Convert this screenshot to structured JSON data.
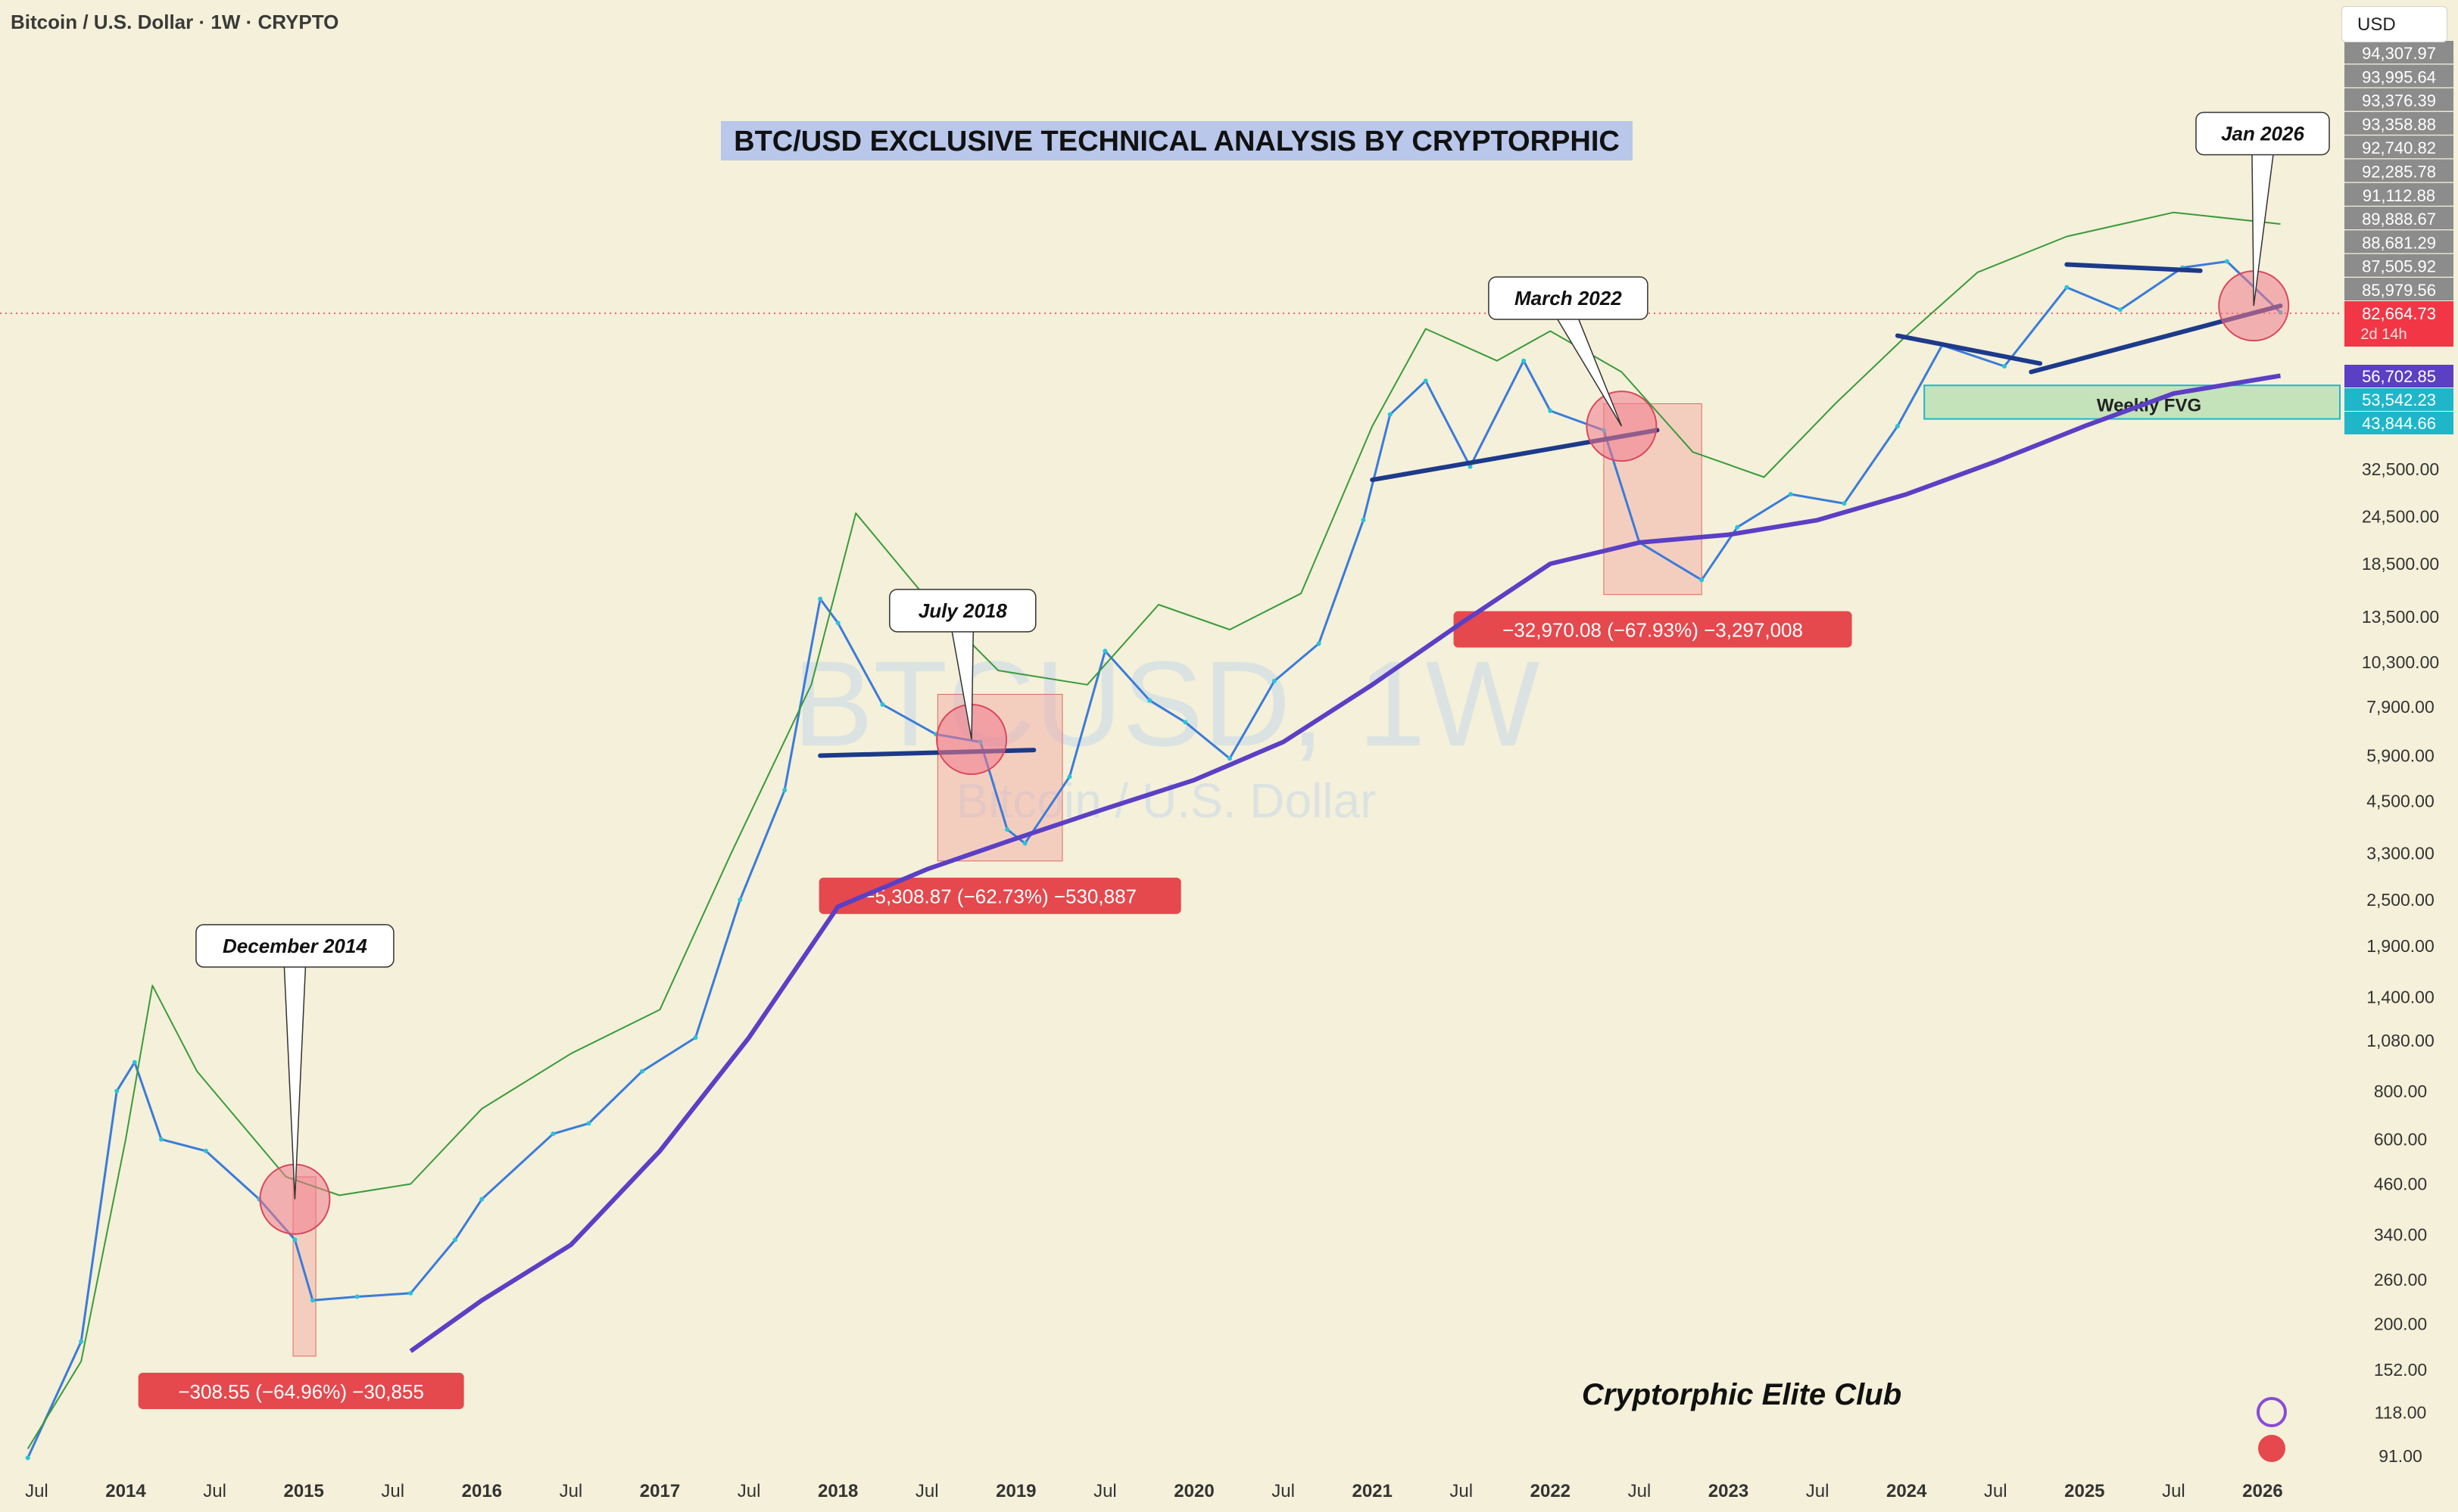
{
  "header": {
    "symbol_title": "Bitcoin / U.S. Dollar · 1W · CRYPTO",
    "currency": "USD"
  },
  "watermark": {
    "ticker": "BTCUSD, 1W",
    "name": "Bitcoin / U.S. Dollar"
  },
  "chart_data": {
    "type": "line",
    "title": "BTC/USD EXCLUSIVE TECHNICAL ANALYSIS BY CRYPTORPHIC",
    "signature": "Cryptorphic Elite Club",
    "scale": "log",
    "grid": false,
    "x_ticks": [
      "Jul",
      "2014",
      "Jul",
      "2015",
      "Jul",
      "2016",
      "Jul",
      "2017",
      "Jul",
      "2018",
      "Jul",
      "2019",
      "Jul",
      "2020",
      "Jul",
      "2021",
      "Jul",
      "2022",
      "Jul",
      "2023",
      "Jul",
      "2024",
      "Jul",
      "2025",
      "Jul",
      "2026"
    ],
    "y_ticks": [
      "32,500.00",
      "24,500.00",
      "18,500.00",
      "13,500.00",
      "10,300.00",
      "7,900.00",
      "5,900.00",
      "4,500.00",
      "3,300.00",
      "2,500.00",
      "1,900.00",
      "1,400.00",
      "1,080.00",
      "800.00",
      "600.00",
      "460.00",
      "340.00",
      "260.00",
      "200.00",
      "152.00",
      "118.00",
      "91.00"
    ],
    "y_ticks_values": [
      32500,
      24500,
      18500,
      13500,
      10300,
      7900,
      5900,
      4500,
      3300,
      2500,
      1900,
      1400,
      1080,
      800,
      600,
      460,
      340,
      260,
      200,
      152,
      118,
      91
    ],
    "price_stack": [
      "94,307.97",
      "93,995.64",
      "93,376.39",
      "93,358.88",
      "92,740.82",
      "92,285.78",
      "91,112.88",
      "89,888.67",
      "88,681.29",
      "87,505.92",
      "85,979.56"
    ],
    "current_price": {
      "label": "82,664.73",
      "countdown": "2d 14h",
      "color": "#f23645"
    },
    "level_labels": [
      {
        "label": "56,702.85",
        "color": "#5b3fc4"
      },
      {
        "label": "53,542.23",
        "color": "#1fb6c9"
      },
      {
        "label": "43,844.66",
        "color": "#1fb6c9"
      }
    ],
    "fvg_label": "Weekly FVG",
    "series": [
      {
        "name": "",
        "color": "#3b7bd9",
        "points": [
          [
            2013.45,
            90
          ],
          [
            2013.75,
            180
          ],
          [
            2013.95,
            800
          ],
          [
            2014.05,
            950
          ],
          [
            2014.2,
            600
          ],
          [
            2014.45,
            560
          ],
          [
            2014.75,
            420
          ],
          [
            2014.95,
            330
          ],
          [
            2015.05,
            230
          ],
          [
            2015.3,
            235
          ],
          [
            2015.6,
            240
          ],
          [
            2015.85,
            330
          ],
          [
            2016.0,
            420
          ],
          [
            2016.4,
            620
          ],
          [
            2016.6,
            660
          ],
          [
            2016.9,
            900
          ],
          [
            2017.2,
            1100
          ],
          [
            2017.45,
            2500
          ],
          [
            2017.7,
            4800
          ],
          [
            2017.9,
            15000
          ],
          [
            2018.0,
            13000
          ],
          [
            2018.25,
            8000
          ],
          [
            2018.55,
            6700
          ],
          [
            2018.8,
            6400
          ],
          [
            2018.95,
            3800
          ],
          [
            2019.05,
            3500
          ],
          [
            2019.3,
            5200
          ],
          [
            2019.5,
            11000
          ],
          [
            2019.75,
            8200
          ],
          [
            2019.95,
            7200
          ],
          [
            2020.2,
            5800
          ],
          [
            2020.45,
            9200
          ],
          [
            2020.7,
            11500
          ],
          [
            2020.95,
            24000
          ],
          [
            2021.1,
            45000
          ],
          [
            2021.3,
            55000
          ],
          [
            2021.55,
            33000
          ],
          [
            2021.85,
            62000
          ],
          [
            2022.0,
            46000
          ],
          [
            2022.3,
            41000
          ],
          [
            2022.5,
            21000
          ],
          [
            2022.85,
            16800
          ],
          [
            2023.05,
            23000
          ],
          [
            2023.35,
            28000
          ],
          [
            2023.65,
            26500
          ],
          [
            2023.95,
            42000
          ],
          [
            2024.2,
            68000
          ],
          [
            2024.55,
            60000
          ],
          [
            2024.9,
            96000
          ],
          [
            2025.2,
            84000
          ],
          [
            2025.55,
            108000
          ],
          [
            2025.8,
            112000
          ],
          [
            2026.1,
            82664
          ]
        ]
      },
      {
        "name": "",
        "color": "#5b3fc4",
        "points": [
          [
            2015.6,
            170
          ],
          [
            2016.0,
            230
          ],
          [
            2016.5,
            320
          ],
          [
            2017.0,
            560
          ],
          [
            2017.5,
            1100
          ],
          [
            2018.0,
            2400
          ],
          [
            2018.5,
            3000
          ],
          [
            2019.0,
            3600
          ],
          [
            2019.5,
            4300
          ],
          [
            2020.0,
            5100
          ],
          [
            2020.5,
            6400
          ],
          [
            2021.0,
            9000
          ],
          [
            2021.5,
            13000
          ],
          [
            2022.0,
            18500
          ],
          [
            2022.5,
            21000
          ],
          [
            2023.0,
            22000
          ],
          [
            2023.5,
            24000
          ],
          [
            2024.0,
            28000
          ],
          [
            2024.5,
            34000
          ],
          [
            2025.0,
            42000
          ],
          [
            2025.5,
            51000
          ],
          [
            2026.1,
            56702
          ]
        ]
      },
      {
        "name": "",
        "color": "#3a9b3a",
        "points": [
          [
            2013.45,
            95
          ],
          [
            2013.75,
            160
          ],
          [
            2014.0,
            600
          ],
          [
            2014.15,
            1500
          ],
          [
            2014.4,
            900
          ],
          [
            2014.9,
            480
          ],
          [
            2015.2,
            430
          ],
          [
            2015.6,
            460
          ],
          [
            2016.0,
            720
          ],
          [
            2016.5,
            1000
          ],
          [
            2017.0,
            1300
          ],
          [
            2017.4,
            3300
          ],
          [
            2017.85,
            9000
          ],
          [
            2018.1,
            25000
          ],
          [
            2018.5,
            15000
          ],
          [
            2018.9,
            9800
          ],
          [
            2019.4,
            9000
          ],
          [
            2019.8,
            14500
          ],
          [
            2020.2,
            12500
          ],
          [
            2020.6,
            15500
          ],
          [
            2021.0,
            42000
          ],
          [
            2021.3,
            75000
          ],
          [
            2021.7,
            62000
          ],
          [
            2022.0,
            74000
          ],
          [
            2022.4,
            58000
          ],
          [
            2022.8,
            36000
          ],
          [
            2023.2,
            31000
          ],
          [
            2023.6,
            48000
          ],
          [
            2024.0,
            72000
          ],
          [
            2024.4,
            105000
          ],
          [
            2024.9,
            130000
          ],
          [
            2025.5,
            150000
          ],
          [
            2026.1,
            140000
          ]
        ]
      }
    ],
    "drawdowns": [
      {
        "label": "−308.55 (−64.96%) −30,855",
        "x0": 2014.94,
        "x1": 2015.03,
        "y0": 480,
        "y1": 165
      },
      {
        "label": "−5,308.87 (−62.73%) −530,887",
        "x0": 2018.56,
        "x1": 2019.26,
        "y0": 8500,
        "y1": 3150
      },
      {
        "label": "−32,970.08 (−67.93%) −3,297,008",
        "x0": 2022.3,
        "x1": 2022.85,
        "y0": 48000,
        "y1": 15400
      }
    ],
    "annotations": [
      {
        "text": "December 2014",
        "cx": 2014.95,
        "cy": 420,
        "bx": 2014.95,
        "by": 1900
      },
      {
        "text": "July 2018",
        "cx": 2018.75,
        "cy": 6500,
        "bx": 2018.7,
        "by": 14000
      },
      {
        "text": "March 2022",
        "cx": 2022.4,
        "cy": 42000,
        "bx": 2022.1,
        "by": 90000
      },
      {
        "text": "Jan 2026",
        "cx": 2025.95,
        "cy": 86000,
        "bx": 2026.0,
        "by": 240000
      }
    ],
    "trendlines": [
      {
        "x0": 2017.9,
        "y0": 5900,
        "x1": 2019.1,
        "y1": 6100
      },
      {
        "x0": 2021.0,
        "y0": 30500,
        "x1": 2022.6,
        "y1": 41000
      },
      {
        "x0": 2023.95,
        "y0": 72000,
        "x1": 2024.75,
        "y1": 61000
      },
      {
        "x0": 2024.9,
        "y0": 110000,
        "x1": 2025.65,
        "y1": 106000
      },
      {
        "x0": 2024.7,
        "y0": 58000,
        "x1": 2026.1,
        "y1": 86000
      }
    ]
  }
}
